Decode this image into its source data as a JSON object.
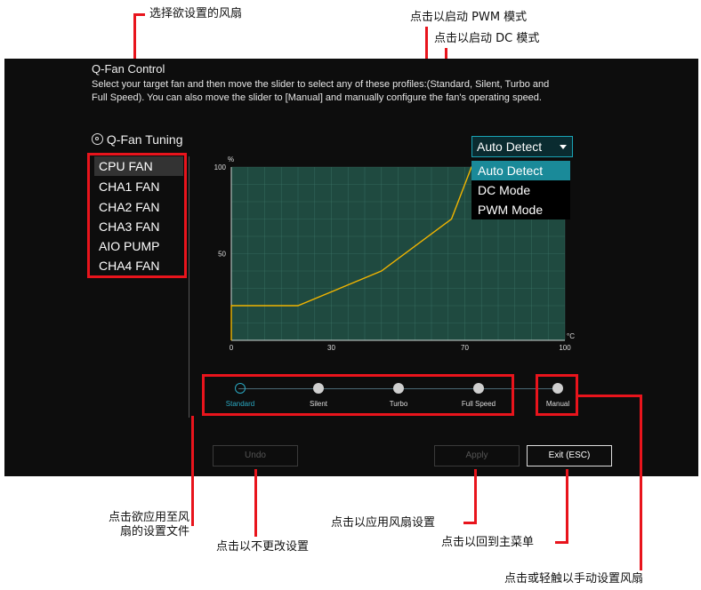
{
  "annotations": {
    "select_fan": "选择欲设置的风扇",
    "pwm_mode": "点击以启动 PWM 模式",
    "dc_mode": "点击以启动 DC 模式",
    "apply_profile_line1": "点击欲应用至风",
    "apply_profile_line2": "扇的设置文件",
    "undo": "点击以不更改设置",
    "apply": "点击以应用风扇设置",
    "exit": "点击以回到主菜单",
    "manual": "点击或轻触以手动设置风扇"
  },
  "panel": {
    "title": "Q-Fan Control",
    "description_line1": "Select your target fan and then move the slider to select any of these profiles:(Standard, Silent, Turbo and",
    "description_line2": "Full Speed). You can also move the slider to [Manual] and manually configure the fan's operating speed.",
    "tuning_label": "Q-Fan Tuning",
    "tuning_icon": "fan-icon",
    "fans": [
      "CPU FAN",
      "CHA1 FAN",
      "CHA2 FAN",
      "CHA3 FAN",
      "AIO PUMP",
      "CHA4 FAN"
    ],
    "selected_fan": "CPU FAN"
  },
  "dropdown": {
    "selected": "Auto Detect",
    "options": [
      "Auto Detect",
      "DC Mode",
      "PWM Mode"
    ],
    "accent": "#1a8a99"
  },
  "chart_data": {
    "type": "line",
    "ylabel": "%",
    "xlabel": "°C",
    "xlim": [
      0,
      100
    ],
    "ylim": [
      0,
      100
    ],
    "x_ticks": [
      "0",
      "30",
      "70",
      "100"
    ],
    "y_ticks": [
      "100",
      "50"
    ],
    "grid": true,
    "series": [
      {
        "x": [
          0,
          0,
          20,
          45,
          66,
          72,
          100
        ],
        "y": [
          0,
          20,
          20,
          40,
          70,
          100,
          100
        ]
      }
    ],
    "line_color": "#f0b400",
    "plot_color": "#1f4a40",
    "grid_color": "#3f7a6c"
  },
  "profiles": {
    "items": [
      "Standard",
      "Silent",
      "Turbo",
      "Full Speed",
      "Manual"
    ],
    "selected": "Standard",
    "accent": "#2aa7c0"
  },
  "buttons": {
    "undo": "Undo",
    "apply": "Apply",
    "exit": "Exit (ESC)"
  },
  "annotation_color": "#e8141c"
}
